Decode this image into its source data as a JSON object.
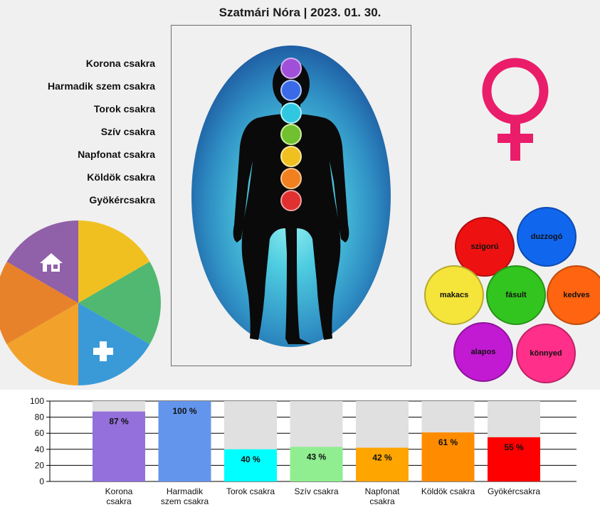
{
  "header": {
    "title": "Szatmári Nóra | 2023. 01. 30."
  },
  "chakra_labels": [
    "Korona csakra",
    "Harmadik szem csakra",
    "Torok csakra",
    "Szív csakra",
    "Napfonat csakra",
    "Köldök csakra",
    "Gyökércsakra"
  ],
  "icons": {
    "gender": "venus-icon",
    "home": "home-icon",
    "health": "plus-icon"
  },
  "traits": [
    {
      "label": "szigorú",
      "color": "#ee1111"
    },
    {
      "label": "duzzogó",
      "color": "#1166ee"
    },
    {
      "label": "makacs",
      "color": "#f5e43a"
    },
    {
      "label": "fásult",
      "color": "#33c51f"
    },
    {
      "label": "kedves",
      "color": "#ff6410"
    },
    {
      "label": "alapos",
      "color": "#c11ad2"
    },
    {
      "label": "könnyed",
      "color": "#ff2f8a"
    }
  ],
  "chart_data": {
    "type": "bar",
    "categories": [
      "Korona csakra",
      "Harmadik szem csakra",
      "Torok csakra",
      "Szív csakra",
      "Napfonat csakra",
      "Köldök csakra",
      "Gyökércsakra"
    ],
    "values": [
      87,
      100,
      40,
      43,
      42,
      61,
      55
    ],
    "data_labels": [
      "87 %",
      "100 %",
      "40 %",
      "43 %",
      "42 %",
      "61 %",
      "55 %"
    ],
    "colors": [
      "#9370db",
      "#6495ed",
      "#00ffff",
      "#90ee90",
      "#ffa500",
      "#ff8c00",
      "#ff0000"
    ],
    "background_color": "#e0e0e0",
    "ylim": [
      0,
      100
    ],
    "yticks": [
      0,
      20,
      40,
      60,
      80,
      100
    ],
    "grid": true
  },
  "pie": {
    "colors": [
      "#f0c020",
      "#50b870",
      "#3a9ad8",
      "#f2a22a",
      "#e8822a",
      "#9060a8"
    ]
  }
}
